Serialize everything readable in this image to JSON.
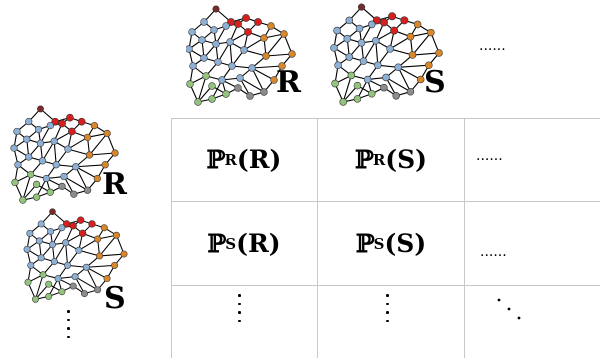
{
  "header_labels": [
    "R",
    "S"
  ],
  "header_trailing": "......",
  "row_labels": [
    "R",
    "S"
  ],
  "cells": [
    [
      "ℙ_R(R)",
      "ℙ_R(S)",
      "......"
    ],
    [
      "ℙ_S(R)",
      "ℙ_S(S)",
      "......"
    ]
  ],
  "cell_parts": {
    "r0c0": {
      "p": "ℙ",
      "sub": "R",
      "arg": "(R)"
    },
    "r0c1": {
      "p": "ℙ",
      "sub": "R",
      "arg": "(S)"
    },
    "r1c0": {
      "p": "ℙ",
      "sub": "S",
      "arg": "(R)"
    },
    "r1c1": {
      "p": "ℙ",
      "sub": "S",
      "arg": "(S)"
    }
  },
  "colors": {
    "node_red": "#d62020",
    "node_orange": "#d9872b",
    "node_blue": "#8fb0d6",
    "node_green": "#93c47d",
    "node_dark": "#7a2a2a",
    "node_gray": "#8c8c8c",
    "grid": "#c8c8c8"
  }
}
